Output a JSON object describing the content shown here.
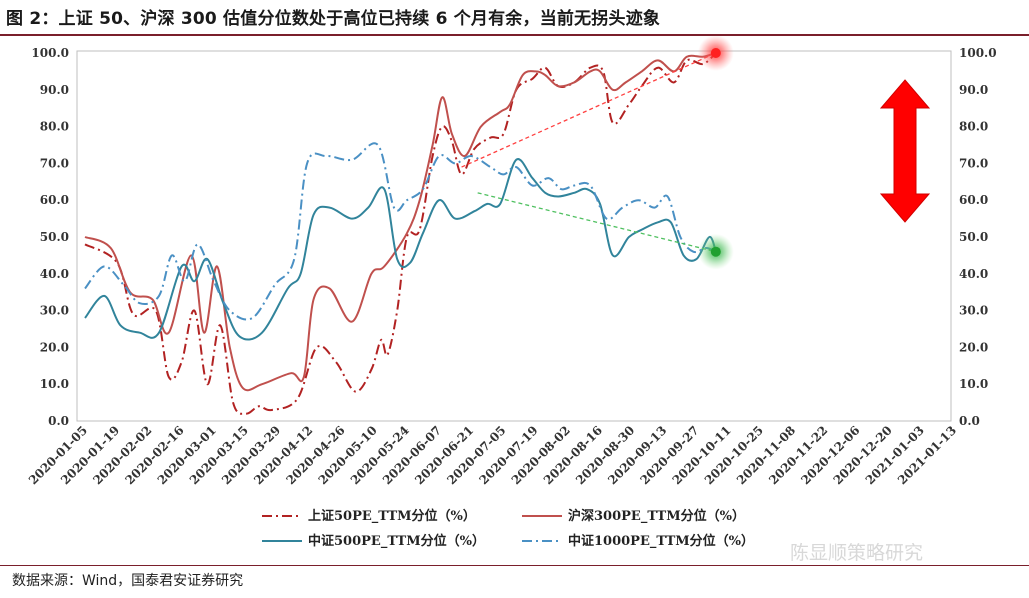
{
  "title": "图 2：上证 50、沪深 300 估值分位数处于高位已持续 6 个月有余，当前无拐头迹象",
  "source": "数据来源：Wind，国泰君安证券研究",
  "watermark": "陈显顺策略研究",
  "chart_data": {
    "type": "line",
    "ylim": [
      0,
      100
    ],
    "yticks": [
      "0.0",
      "10.0",
      "20.0",
      "30.0",
      "40.0",
      "50.0",
      "60.0",
      "70.0",
      "80.0",
      "90.0",
      "100.0"
    ],
    "x_tick_labels": [
      "2020-01-05",
      "2020-01-19",
      "2020-02-02",
      "2020-02-16",
      "2020-03-01",
      "2020-03-15",
      "2020-03-29",
      "2020-04-12",
      "2020-04-26",
      "2020-05-10",
      "2020-05-24",
      "2020-06-07",
      "2020-06-21",
      "2020-07-05",
      "2020-07-19",
      "2020-08-02",
      "2020-08-16",
      "2020-08-30",
      "2020-09-13",
      "2020-09-27",
      "2020-10-11",
      "2020-10-25",
      "2020-11-08",
      "2020-11-22",
      "2020-12-06",
      "2020-12-20",
      "2021-01-03",
      "2021-01-13"
    ],
    "series": [
      {
        "name": "上证50PE_TTM分位（%）",
        "color": "#b22222",
        "style": "dashdot",
        "points": [
          [
            0,
            48
          ],
          [
            1,
            43
          ],
          [
            1.5,
            29
          ],
          [
            2.2,
            30
          ],
          [
            2.6,
            12
          ],
          [
            3,
            16
          ],
          [
            3.4,
            30
          ],
          [
            3.8,
            10
          ],
          [
            4.2,
            26
          ],
          [
            4.6,
            5
          ],
          [
            5,
            2
          ],
          [
            5.4,
            4
          ],
          [
            5.8,
            3
          ],
          [
            6.6,
            6
          ],
          [
            7.2,
            20
          ],
          [
            7.8,
            16
          ],
          [
            8.4,
            8
          ],
          [
            8.9,
            14
          ],
          [
            9.2,
            22
          ],
          [
            9.4,
            18
          ],
          [
            9.7,
            30
          ],
          [
            10,
            50
          ],
          [
            10.4,
            52
          ],
          [
            10.8,
            72
          ],
          [
            11.1,
            80
          ],
          [
            11.4,
            76
          ],
          [
            11.7,
            67
          ],
          [
            12.1,
            74
          ],
          [
            12.6,
            77
          ],
          [
            13,
            78
          ],
          [
            13.4,
            90
          ],
          [
            13.9,
            93
          ],
          [
            14.3,
            96
          ],
          [
            14.7,
            91
          ],
          [
            15.2,
            92
          ],
          [
            15.7,
            96
          ],
          [
            16.1,
            95
          ],
          [
            16.4,
            81
          ],
          [
            16.9,
            86
          ],
          [
            17.3,
            91
          ],
          [
            17.8,
            96
          ],
          [
            18.3,
            92
          ],
          [
            18.7,
            98
          ],
          [
            19.2,
            97
          ],
          [
            19.6,
            100
          ]
        ]
      },
      {
        "name": "沪深300PE_TTM分位（%）",
        "color": "#c0504d",
        "style": "solid",
        "points": [
          [
            0,
            50
          ],
          [
            0.8,
            47
          ],
          [
            1.4,
            35
          ],
          [
            2.1,
            33
          ],
          [
            2.6,
            24
          ],
          [
            3.3,
            45
          ],
          [
            3.7,
            24
          ],
          [
            4.1,
            42
          ],
          [
            4.5,
            20
          ],
          [
            4.9,
            9
          ],
          [
            5.5,
            10
          ],
          [
            6.4,
            13
          ],
          [
            6.8,
            12
          ],
          [
            7.1,
            33
          ],
          [
            7.6,
            36
          ],
          [
            8.3,
            27
          ],
          [
            8.9,
            40
          ],
          [
            9.3,
            42
          ],
          [
            10,
            51
          ],
          [
            10.4,
            60
          ],
          [
            10.8,
            75
          ],
          [
            11.1,
            88
          ],
          [
            11.4,
            78
          ],
          [
            11.8,
            72
          ],
          [
            12.3,
            80
          ],
          [
            12.9,
            84
          ],
          [
            13.2,
            86
          ],
          [
            13.6,
            94
          ],
          [
            14,
            95
          ],
          [
            14.3,
            94
          ],
          [
            14.7,
            91
          ],
          [
            15.2,
            92
          ],
          [
            15.7,
            95
          ],
          [
            16,
            95
          ],
          [
            16.4,
            90
          ],
          [
            16.8,
            92
          ],
          [
            17.3,
            95
          ],
          [
            17.8,
            98
          ],
          [
            18.3,
            95
          ],
          [
            18.7,
            99
          ],
          [
            19.2,
            99
          ],
          [
            19.6,
            100
          ]
        ]
      },
      {
        "name": "中证500PE_TTM分位（%）",
        "color": "#31849b",
        "style": "solid",
        "points": [
          [
            0,
            28
          ],
          [
            0.6,
            34
          ],
          [
            1.1,
            26
          ],
          [
            1.7,
            24
          ],
          [
            2.3,
            24
          ],
          [
            3,
            42
          ],
          [
            3.4,
            38
          ],
          [
            3.8,
            44
          ],
          [
            4.3,
            32
          ],
          [
            4.8,
            23
          ],
          [
            5.5,
            24
          ],
          [
            6.3,
            36
          ],
          [
            6.7,
            40
          ],
          [
            7.1,
            56
          ],
          [
            7.6,
            58
          ],
          [
            8.3,
            55
          ],
          [
            8.8,
            58
          ],
          [
            9.3,
            63
          ],
          [
            9.7,
            44
          ],
          [
            10.1,
            43
          ],
          [
            10.5,
            51
          ],
          [
            11,
            60
          ],
          [
            11.5,
            55
          ],
          [
            12.1,
            57
          ],
          [
            12.5,
            59
          ],
          [
            12.9,
            59
          ],
          [
            13.4,
            71
          ],
          [
            13.9,
            66
          ],
          [
            14.3,
            62
          ],
          [
            14.7,
            61
          ],
          [
            15.2,
            62
          ],
          [
            15.6,
            63
          ],
          [
            16,
            59
          ],
          [
            16.4,
            45
          ],
          [
            16.9,
            50
          ],
          [
            17.3,
            52
          ],
          [
            17.8,
            54
          ],
          [
            18.2,
            54
          ],
          [
            18.6,
            45
          ],
          [
            19,
            44
          ],
          [
            19.4,
            50
          ],
          [
            19.6,
            46
          ]
        ]
      },
      {
        "name": "中证1000PE_TTM分位（%）",
        "color": "#4a90c4",
        "style": "dashdot",
        "points": [
          [
            0,
            36
          ],
          [
            0.6,
            42
          ],
          [
            1.2,
            37
          ],
          [
            1.7,
            32
          ],
          [
            2.3,
            34
          ],
          [
            2.7,
            45
          ],
          [
            3.1,
            38
          ],
          [
            3.5,
            48
          ],
          [
            4,
            38
          ],
          [
            4.5,
            30
          ],
          [
            5.2,
            28
          ],
          [
            5.9,
            37
          ],
          [
            6.5,
            44
          ],
          [
            6.9,
            70
          ],
          [
            7.5,
            72
          ],
          [
            8.3,
            71
          ],
          [
            9.1,
            75
          ],
          [
            9.6,
            58
          ],
          [
            10,
            60
          ],
          [
            10.5,
            63
          ],
          [
            11,
            72
          ],
          [
            11.5,
            70
          ],
          [
            12,
            72
          ],
          [
            12.6,
            69
          ],
          [
            13,
            67
          ],
          [
            13.4,
            69
          ],
          [
            13.9,
            64
          ],
          [
            14.4,
            66
          ],
          [
            14.8,
            63
          ],
          [
            15.2,
            64
          ],
          [
            15.7,
            64
          ],
          [
            16.2,
            55
          ],
          [
            16.7,
            58
          ],
          [
            17.2,
            60
          ],
          [
            17.7,
            58
          ],
          [
            18.1,
            61
          ],
          [
            18.5,
            50
          ],
          [
            18.9,
            46
          ],
          [
            19.3,
            47
          ],
          [
            19.6,
            46
          ]
        ]
      }
    ],
    "trend_lines": [
      {
        "color": "#ff4040",
        "from": [
          11.7,
          69
        ],
        "to": [
          19.6,
          100
        ]
      },
      {
        "color": "#4fc060",
        "from": [
          12.2,
          62
        ],
        "to": [
          19.6,
          46
        ]
      }
    ]
  }
}
